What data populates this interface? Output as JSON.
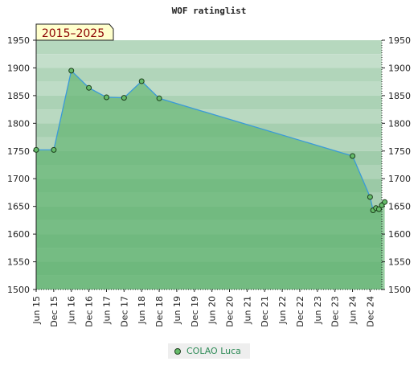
{
  "chart_data": {
    "type": "area",
    "title": "WOF ratinglist",
    "badge": "2015–2025",
    "x_labels": [
      "Jun 15",
      "Dec 15",
      "Jun 16",
      "Dec 16",
      "Jun 17",
      "Dec 17",
      "Jun 18",
      "Dec 18",
      "Jun 19",
      "Dec 19",
      "Jun 20",
      "Dec 20",
      "Jun 21",
      "Dec 21",
      "Jun 22",
      "Dec 22",
      "Jun 23",
      "Dec 23",
      "Jun 24",
      "Dec 24"
    ],
    "y_ticks": [
      1500,
      1550,
      1600,
      1650,
      1700,
      1750,
      1800,
      1850,
      1900,
      1950
    ],
    "ylim": [
      1500,
      1950
    ],
    "grid": true,
    "y_axis_both_sides": true,
    "series": [
      {
        "name": "COLAO Luca",
        "color": "#3a9ad9",
        "fill": "#5fb36f",
        "x": [
          "Jun 15",
          "Dec 15",
          "Jun 16",
          "Dec 16",
          "Jun 17",
          "Dec 17",
          "Jun 18",
          "Dec 18",
          "Jun 24",
          "Dec 24",
          "Jan 25",
          "Feb 25",
          "Mar 25",
          "Apr 25",
          "May 25"
        ],
        "values": [
          1752,
          1752,
          1895,
          1864,
          1847,
          1846,
          1876,
          1845,
          1741,
          1667,
          1643,
          1647,
          1645,
          1652,
          1658
        ]
      }
    ]
  }
}
